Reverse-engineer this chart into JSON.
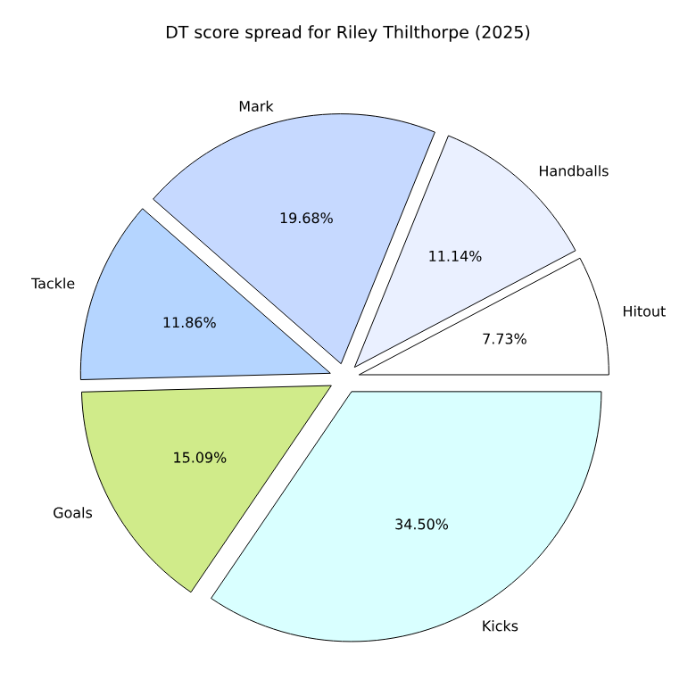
{
  "chart_data": {
    "type": "pie",
    "title": "DT score spread for Riley Thilthorpe (2025)",
    "categories": [
      "Hitout",
      "Handballs",
      "Mark",
      "Tackle",
      "Goals",
      "Kicks"
    ],
    "values": [
      7.73,
      11.14,
      19.68,
      11.86,
      15.09,
      34.5
    ],
    "value_labels": [
      "7.73%",
      "11.14%",
      "19.68%",
      "11.86%",
      "15.09%",
      "34.50%"
    ],
    "colors": [
      "#ffffff",
      "#eaf0ff",
      "#c6d9ff",
      "#b5d5ff",
      "#d0eb8a",
      "#d9ffff"
    ]
  }
}
